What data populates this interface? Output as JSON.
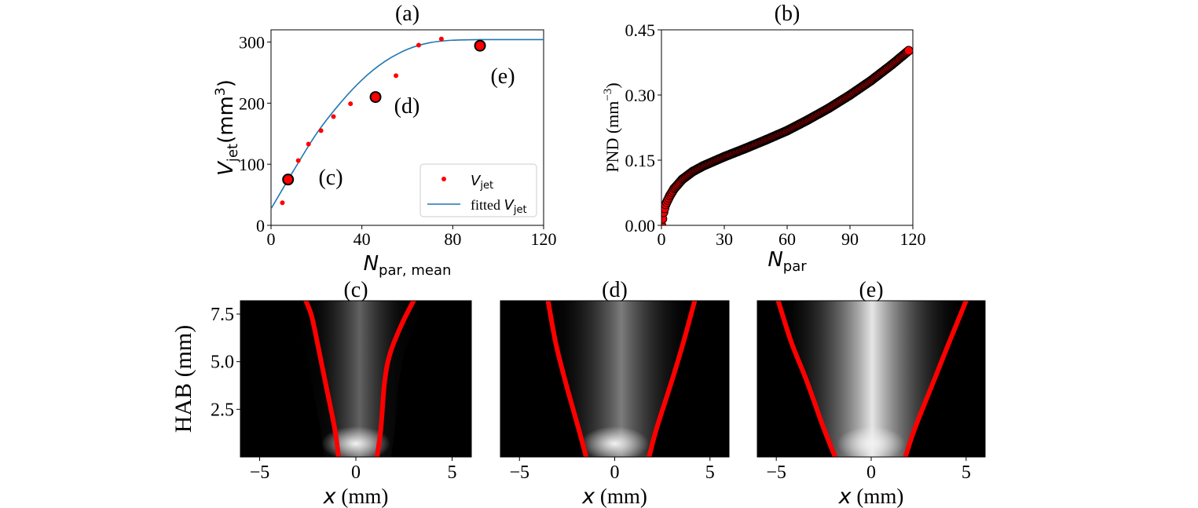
{
  "chart_data": [
    {
      "id": "a",
      "panel_label": "(a)",
      "type": "scatter",
      "xlabel": "N",
      "xlabel_sub": "par, mean",
      "ylabel": "V",
      "ylabel_sub": "jet",
      "ylabel_unit": "(mm",
      "ylabel_unit_sup": "3",
      "ylabel_unit_close": ")",
      "xlim": [
        0,
        120
      ],
      "ylim": [
        0,
        320
      ],
      "xticks": [
        0,
        40,
        80,
        120
      ],
      "yticks": [
        0,
        100,
        200,
        300
      ],
      "grid": false,
      "legend_position": "lower-right",
      "series": [
        {
          "name": "V",
          "name_sub": "jet",
          "kind": "points",
          "color": "#ff0000",
          "x": [
            5,
            7.5,
            12,
            16.5,
            22,
            27.5,
            35,
            46,
            55,
            65,
            75
          ],
          "y": [
            37,
            75,
            106,
            133,
            155,
            178,
            199,
            210,
            245,
            295,
            305
          ]
        },
        {
          "name": "fitted V",
          "name_sub": "jet",
          "kind": "line",
          "color": "#1f77b4",
          "x": [
            0,
            10,
            20,
            30,
            40,
            50,
            60,
            70,
            80,
            92,
            100,
            110,
            120
          ],
          "y": [
            27,
            90,
            150,
            198,
            238,
            268,
            288,
            299,
            303,
            304,
            304,
            304,
            304
          ]
        }
      ],
      "highlighted_points": [
        {
          "x": 7.5,
          "y": 75,
          "label": "(c)"
        },
        {
          "x": 46,
          "y": 210,
          "label": "(d)"
        },
        {
          "x": 92,
          "y": 294,
          "label": "(e)"
        }
      ]
    },
    {
      "id": "b",
      "panel_label": "(b)",
      "type": "scatter",
      "xlabel": "N",
      "xlabel_sub": "par",
      "ylabel": "PND (mm",
      "ylabel_sup": "−3",
      "ylabel_close": ")",
      "xlim": [
        0,
        120
      ],
      "ylim": [
        0,
        0.45
      ],
      "xticks": [
        0,
        30,
        60,
        90,
        120
      ],
      "xtick_labels": [
        "0",
        "30",
        "60",
        "90",
        "120"
      ],
      "yticks": [
        0,
        0.15,
        0.3,
        0.45
      ],
      "ytick_labels": [
        "0.00",
        "0.15",
        "0.30",
        "0.45"
      ],
      "grid": false,
      "series": [
        {
          "marker": "circle",
          "color": "#ff0000",
          "edge_color": "#000000",
          "x": [
            0,
            1,
            2,
            4,
            6,
            10,
            15,
            20,
            30,
            40,
            50,
            60,
            70,
            80,
            90,
            100,
            110,
            118
          ],
          "y": [
            0,
            0.03,
            0.048,
            0.068,
            0.084,
            0.106,
            0.124,
            0.137,
            0.158,
            0.177,
            0.197,
            0.218,
            0.243,
            0.27,
            0.3,
            0.333,
            0.37,
            0.402
          ]
        }
      ]
    },
    {
      "id": "c",
      "panel_label": "(c)",
      "type": "heatmap",
      "xlabel": "x",
      "xlabel_unit": " (mm)",
      "ylabel": "HAB (mm)",
      "xticks": [
        -5,
        0,
        5
      ],
      "xtick_labels": [
        "−5",
        "0",
        "5"
      ],
      "yticks": [
        2.5,
        5.0,
        7.5
      ],
      "ytick_labels": [
        "2.5",
        "5.0",
        "7.5"
      ],
      "xlim": [
        -6,
        6
      ],
      "ylim": [
        0,
        8.2
      ],
      "boundary_color": "#ff0000",
      "boundary_left": {
        "x": [
          -0.9,
          -1.1,
          -1.6,
          -2.0,
          -2.3,
          -2.6
        ],
        "y": [
          0,
          1.5,
          4.0,
          6.0,
          7.4,
          8.2
        ]
      },
      "boundary_right": {
        "x": [
          1.1,
          1.3,
          1.5,
          1.8,
          2.4,
          3.0
        ],
        "y": [
          0,
          1.5,
          4.0,
          5.5,
          7.0,
          8.2
        ]
      }
    },
    {
      "id": "d",
      "panel_label": "(d)",
      "type": "heatmap",
      "xlabel": "x",
      "xlabel_unit": " (mm)",
      "xticks": [
        -5,
        0,
        5
      ],
      "xtick_labels": [
        "−5",
        "0",
        "5"
      ],
      "xlim": [
        -6,
        6
      ],
      "ylim": [
        0,
        8.2
      ],
      "boundary_color": "#ff0000",
      "boundary_left": {
        "x": [
          -1.5,
          -1.9,
          -2.6,
          -3.1,
          -3.5
        ],
        "y": [
          0,
          1.5,
          4.0,
          6.0,
          8.2
        ]
      },
      "boundary_right": {
        "x": [
          1.8,
          2.2,
          3.0,
          3.6,
          4.2
        ],
        "y": [
          0,
          1.5,
          4.0,
          6.0,
          8.2
        ]
      }
    },
    {
      "id": "e",
      "panel_label": "(e)",
      "type": "heatmap",
      "xlabel": "x",
      "xlabel_unit": " (mm)",
      "xticks": [
        -5,
        0,
        5
      ],
      "xtick_labels": [
        "−5",
        "0",
        "5"
      ],
      "xlim": [
        -6,
        6
      ],
      "ylim": [
        0,
        8.2
      ],
      "boundary_color": "#ff0000",
      "boundary_left": {
        "x": [
          -1.9,
          -2.5,
          -3.4,
          -4.2,
          -4.9
        ],
        "y": [
          0,
          1.5,
          4.0,
          6.0,
          8.2
        ]
      },
      "boundary_right": {
        "x": [
          1.8,
          2.3,
          3.3,
          4.1,
          5.0
        ],
        "y": [
          0,
          1.5,
          4.0,
          6.0,
          8.2
        ]
      }
    }
  ]
}
